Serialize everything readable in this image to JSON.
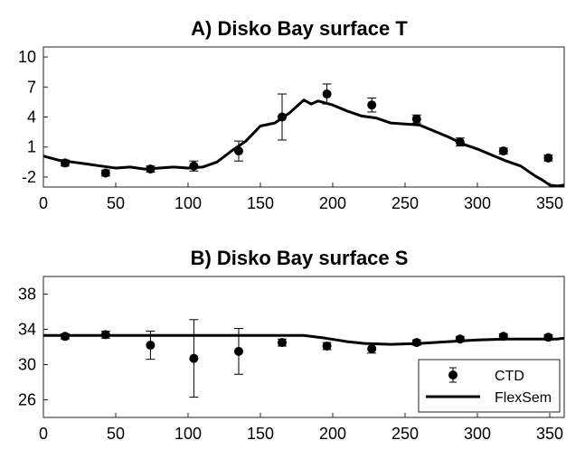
{
  "chart_data": [
    {
      "type": "line",
      "title": "A) Disko Bay surface T",
      "xlim": [
        0,
        360
      ],
      "ylim": [
        -3,
        11
      ],
      "x_ticks": [
        "0",
        "50",
        "100",
        "150",
        "200",
        "250",
        "300",
        "350"
      ],
      "y_ticks": [
        "-2",
        "1",
        "4",
        "7",
        "10"
      ],
      "series": [
        {
          "name": "CTD",
          "style": "points-with-errorbars",
          "x": [
            15,
            43,
            74,
            104,
            135,
            165,
            196,
            227,
            258,
            288,
            318,
            349
          ],
          "y": [
            -0.6,
            -1.6,
            -1.2,
            -0.9,
            0.6,
            4.0,
            6.3,
            5.2,
            3.8,
            1.5,
            0.6,
            -0.1
          ],
          "err": [
            0.3,
            0.3,
            0.3,
            0.5,
            1.0,
            2.3,
            1.0,
            0.7,
            0.4,
            0.4,
            0.3,
            0.3
          ]
        },
        {
          "name": "FlexSem",
          "style": "line",
          "x": [
            0,
            10,
            20,
            30,
            40,
            50,
            60,
            70,
            80,
            90,
            100,
            110,
            120,
            130,
            140,
            150,
            160,
            170,
            180,
            185,
            190,
            200,
            210,
            220,
            230,
            240,
            250,
            260,
            270,
            280,
            290,
            300,
            310,
            320,
            330,
            340,
            345,
            350,
            355,
            360
          ],
          "y": [
            0.1,
            -0.3,
            -0.5,
            -0.7,
            -0.9,
            -1.1,
            -1.0,
            -1.2,
            -1.1,
            -1.0,
            -1.1,
            -1.0,
            -0.5,
            0.6,
            1.6,
            3.1,
            3.4,
            4.4,
            5.7,
            5.3,
            5.6,
            5.2,
            4.6,
            4.1,
            3.9,
            3.4,
            3.3,
            3.2,
            2.6,
            2.0,
            1.3,
            0.8,
            0.2,
            -0.4,
            -0.9,
            -1.9,
            -2.3,
            -2.8,
            -2.9,
            -2.8
          ]
        }
      ]
    },
    {
      "type": "line",
      "title": "B) Disko Bay surface S",
      "xlim": [
        0,
        360
      ],
      "ylim": [
        24,
        40
      ],
      "x_ticks": [
        "0",
        "50",
        "100",
        "150",
        "200",
        "250",
        "300",
        "350"
      ],
      "y_ticks": [
        "26",
        "30",
        "34",
        "38"
      ],
      "legend": {
        "position": "bottom-right",
        "entries": [
          "CTD",
          "FlexSem"
        ]
      },
      "series": [
        {
          "name": "CTD",
          "style": "points-with-errorbars",
          "x": [
            15,
            43,
            74,
            104,
            135,
            165,
            196,
            227,
            258,
            288,
            318,
            349
          ],
          "y": [
            33.2,
            33.4,
            32.2,
            30.7,
            31.5,
            32.5,
            32.1,
            31.8,
            32.5,
            32.9,
            33.2,
            33.1
          ],
          "err": [
            0.3,
            0.4,
            1.6,
            4.4,
            2.6,
            0.4,
            0.4,
            0.5,
            0.3,
            0.3,
            0.3,
            0.3
          ]
        },
        {
          "name": "FlexSem",
          "style": "line",
          "x": [
            0,
            50,
            100,
            150,
            180,
            195,
            210,
            222,
            240,
            260,
            280,
            300,
            320,
            340,
            355,
            360
          ],
          "y": [
            33.3,
            33.3,
            33.3,
            33.3,
            33.3,
            33.0,
            32.6,
            32.4,
            32.3,
            32.4,
            32.6,
            32.8,
            32.9,
            32.9,
            32.9,
            33.0
          ]
        }
      ]
    }
  ]
}
